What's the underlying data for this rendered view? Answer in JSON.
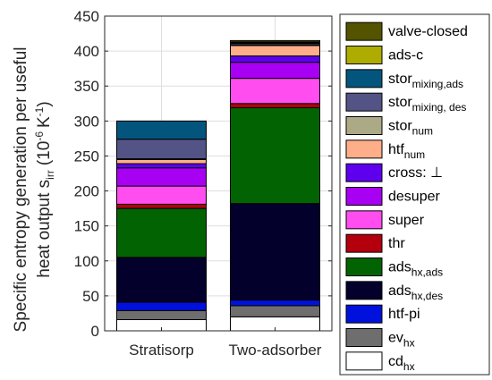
{
  "chart_data": {
    "type": "bar",
    "stacked": true,
    "categories": [
      "Stratisorp",
      "Two-adsorber"
    ],
    "ylabel_line1": "Specific entropy generation per useful",
    "ylabel_line2": "heat output s",
    "ylabel_sub": "irr",
    "ylabel_paren": "(10",
    "ylabel_exp1": "-6",
    "ylabel_unit": "K",
    "ylabel_exp2": "-1",
    "ylabel_close": ")",
    "ylim": [
      0,
      450
    ],
    "yticks": [
      "0",
      "50",
      "100",
      "150",
      "200",
      "250",
      "300",
      "350",
      "400",
      "450"
    ],
    "grid": true,
    "legend_position": "right",
    "series": [
      {
        "name": "cd",
        "sub": "hx",
        "color": "#ffffff",
        "values": [
          16,
          20
        ]
      },
      {
        "name": "ev",
        "sub": "hx",
        "color": "#6e6e6e",
        "values": [
          13,
          16
        ]
      },
      {
        "name": "htf-pi",
        "sub": "",
        "color": "#0011dd",
        "values": [
          12,
          8
        ]
      },
      {
        "name": "ads",
        "sub": "hx,des",
        "color": "#03002c",
        "values": [
          64,
          138
        ]
      },
      {
        "name": "ads",
        "sub": "hx,ads",
        "color": "#026303",
        "values": [
          70,
          137
        ]
      },
      {
        "name": "thr",
        "sub": "",
        "color": "#b3000c",
        "values": [
          6,
          6
        ]
      },
      {
        "name": "super",
        "sub": "",
        "color": "#ff4df0",
        "values": [
          26,
          36
        ]
      },
      {
        "name": "desuper",
        "sub": "",
        "color": "#a800f2",
        "values": [
          26,
          23
        ]
      },
      {
        "name": "cross: ⊥",
        "sub": "",
        "color": "#5e00ee",
        "values": [
          6,
          9
        ]
      },
      {
        "name": "htf",
        "sub": "num",
        "color": "#ffae8a",
        "values": [
          6,
          15
        ]
      },
      {
        "name": "stor",
        "sub": "num",
        "color": "#acaa86",
        "values": [
          1,
          1
        ]
      },
      {
        "name": "stor",
        "sub": "mixing, des",
        "color": "#535386",
        "values": [
          28,
          2
        ]
      },
      {
        "name": "stor",
        "sub": "mixing,ads",
        "color": "#03557e",
        "values": [
          26,
          1
        ]
      },
      {
        "name": "ads-c",
        "sub": "",
        "color": "#aeac00",
        "values": [
          0,
          1
        ]
      },
      {
        "name": "valve-closed",
        "sub": "",
        "color": "#535300",
        "values": [
          0,
          2
        ]
      }
    ]
  }
}
